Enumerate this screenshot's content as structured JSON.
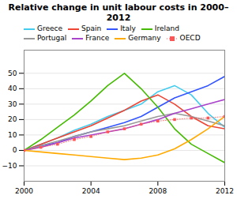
{
  "chart_data": {
    "type": "line",
    "title": "Relative change in unit labour costs in 2000–2012",
    "x": [
      2000,
      2001,
      2002,
      2003,
      2004,
      2005,
      2006,
      2007,
      2008,
      2009,
      2010,
      2011,
      2012
    ],
    "series": [
      {
        "name": "Greece",
        "color": "#44ccee",
        "values": [
          0,
          4,
          8,
          13,
          17,
          22,
          26,
          30,
          38,
          42,
          36,
          24,
          15
        ]
      },
      {
        "name": "Spain",
        "color": "#ee4433",
        "values": [
          0,
          4,
          8,
          12,
          16,
          21,
          26,
          32,
          36,
          30,
          22,
          16,
          14
        ]
      },
      {
        "name": "Italy",
        "color": "#3355ff",
        "values": [
          0,
          3,
          5,
          9,
          12,
          15,
          18,
          22,
          28,
          34,
          38,
          42,
          48
        ]
      },
      {
        "name": "Ireland",
        "color": "#44bb00",
        "values": [
          0,
          7,
          15,
          23,
          32,
          42,
          50,
          40,
          28,
          14,
          4,
          -2,
          -8
        ]
      },
      {
        "name": "Portugal",
        "color": "#999999",
        "values": [
          0,
          3,
          6,
          9,
          12,
          14,
          16,
          19,
          22,
          24,
          22,
          19,
          16
        ]
      },
      {
        "name": "France",
        "color": "#aa44cc",
        "values": [
          0,
          2,
          5,
          8,
          10,
          12,
          14,
          17,
          20,
          24,
          27,
          30,
          33
        ]
      },
      {
        "name": "Germany",
        "color": "#ffaa00",
        "values": [
          0,
          -1,
          -2,
          -3,
          -4,
          -5,
          -6,
          -5,
          -3,
          1,
          7,
          14,
          22
        ]
      },
      {
        "name": "OECD",
        "color": "#ff5555",
        "marker": "square",
        "line_style": "dotted",
        "values": [
          0,
          2,
          4,
          7,
          9,
          12,
          14,
          17,
          19,
          20,
          21,
          21,
          22
        ]
      }
    ],
    "xlim": [
      2000,
      2012
    ],
    "xticks": [
      2000,
      2004,
      2008,
      2012
    ],
    "ylim": [
      -20,
      65
    ],
    "yticks": [
      -10,
      0,
      10,
      20,
      30,
      40,
      50
    ],
    "grid": "y",
    "legend": "upper left"
  }
}
